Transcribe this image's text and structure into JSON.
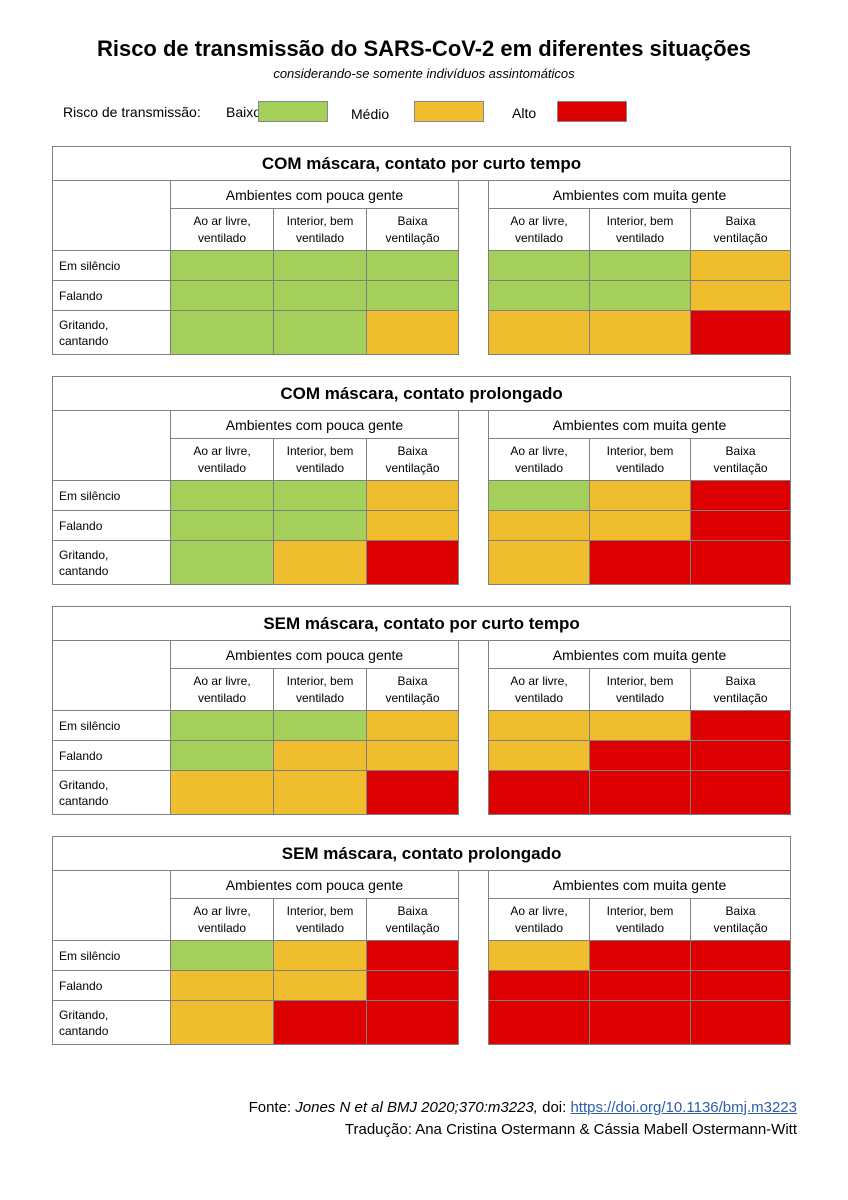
{
  "title": "Risco de transmissão do SARS-CoV-2 em diferentes situações",
  "subtitle": "considerando-se somente indivíduos assintomáticos",
  "legend": {
    "label": "Risco de transmissão:",
    "items": [
      {
        "label": "Baixo",
        "color": "#a5cf5b"
      },
      {
        "label": "Médio",
        "color": "#f0bd2e"
      },
      {
        "label": "Alto",
        "color": "#dc0000"
      }
    ]
  },
  "colors": {
    "low": "#a5cf5b",
    "medium": "#f0bd2e",
    "high": "#dc0000"
  },
  "tables": [
    {
      "title": "COM máscara, contato por curto tempo",
      "group_left": "Ambientes com pouca gente",
      "group_right": "Ambientes com muita gente",
      "columns": [
        "Ao ar livre,\nventilado",
        "Interior, bem\nventilado",
        "Baixa\nventilação"
      ],
      "rows": [
        {
          "label": "Em silêncio",
          "risks": [
            "low",
            "low",
            "low",
            "low",
            "low",
            "medium"
          ]
        },
        {
          "label": "Falando",
          "risks": [
            "low",
            "low",
            "low",
            "low",
            "low",
            "medium"
          ]
        },
        {
          "label": "Gritando,\ncantando",
          "risks": [
            "low",
            "low",
            "medium",
            "medium",
            "medium",
            "high"
          ]
        }
      ]
    },
    {
      "title": "COM máscara, contato prolongado",
      "group_left": "Ambientes com pouca gente",
      "group_right": "Ambientes com muita gente",
      "columns": [
        "Ao ar livre,\nventilado",
        "Interior, bem\nventilado",
        "Baixa\nventilação"
      ],
      "rows": [
        {
          "label": "Em silêncio",
          "risks": [
            "low",
            "low",
            "medium",
            "low",
            "medium",
            "high"
          ]
        },
        {
          "label": "Falando",
          "risks": [
            "low",
            "low",
            "medium",
            "medium",
            "medium",
            "high"
          ]
        },
        {
          "label": "Gritando,\ncantando",
          "risks": [
            "low",
            "medium",
            "high",
            "medium",
            "high",
            "high"
          ]
        }
      ]
    },
    {
      "title": "SEM máscara, contato por curto tempo",
      "group_left": "Ambientes com pouca gente",
      "group_right": "Ambientes com muita gente",
      "columns": [
        "Ao ar livre,\nventilado",
        "Interior, bem\nventilado",
        "Baixa\nventilação"
      ],
      "rows": [
        {
          "label": "Em silêncio",
          "risks": [
            "low",
            "low",
            "medium",
            "medium",
            "medium",
            "high"
          ]
        },
        {
          "label": "Falando",
          "risks": [
            "low",
            "medium",
            "medium",
            "medium",
            "high",
            "high"
          ]
        },
        {
          "label": "Gritando,\ncantando",
          "risks": [
            "medium",
            "medium",
            "high",
            "high",
            "high",
            "high"
          ]
        }
      ]
    },
    {
      "title": "SEM máscara, contato prolongado",
      "group_left": "Ambientes com pouca gente",
      "group_right": "Ambientes com muita gente",
      "columns": [
        "Ao ar livre,\nventilado",
        "Interior, bem\nventilado",
        "Baixa\nventilação"
      ],
      "rows": [
        {
          "label": "Em silêncio",
          "risks": [
            "low",
            "medium",
            "high",
            "medium",
            "high",
            "high"
          ]
        },
        {
          "label": "Falando",
          "risks": [
            "medium",
            "medium",
            "high",
            "high",
            "high",
            "high"
          ]
        },
        {
          "label": "Gritando,\ncantando",
          "risks": [
            "medium",
            "high",
            "high",
            "high",
            "high",
            "high"
          ]
        }
      ]
    }
  ],
  "source": {
    "prefix": "Fonte: ",
    "citation": "Jones N et al BMJ 2020;370:m3223,",
    "doi_label": " doi: ",
    "link": "https://doi.org/10.1136/bmj.m3223",
    "translation": "Tradução: Ana Cristina Ostermann & Cássia Mabell Ostermann-Witt"
  }
}
